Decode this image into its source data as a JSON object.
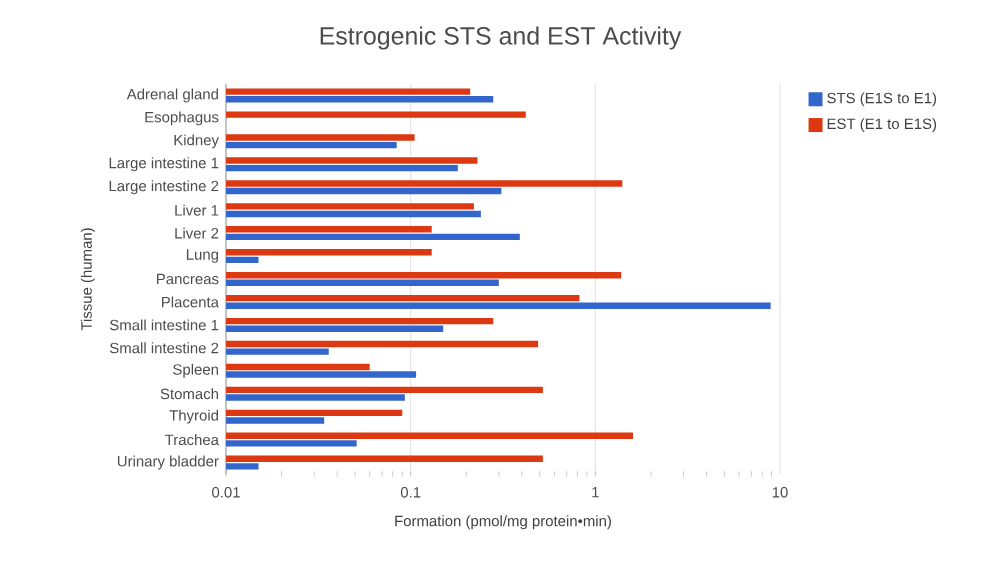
{
  "chart_data": {
    "type": "bar",
    "orientation": "horizontal",
    "title": "Estrogenic STS and EST Activity",
    "xlabel": "Formation (pmol/mg protein•min)",
    "ylabel": "Tissue (human)",
    "categories": [
      "Adrenal gland",
      "Esophagus",
      "Kidney",
      "Large intestine 1",
      "Large intestine 2",
      "Liver 1",
      "Liver 2",
      "Lung",
      "Pancreas",
      "Placenta",
      "Small intestine 1",
      "Small intestine 2",
      "Spleen",
      "Stomach",
      "Thyroid",
      "Trachea",
      "Urinary bladder"
    ],
    "series": [
      {
        "name": "STS (E1S to E1)",
        "color": "#3366cc",
        "values": [
          0.28,
          null,
          0.084,
          0.18,
          0.31,
          0.24,
          0.39,
          0.015,
          0.3,
          8.9,
          0.15,
          0.036,
          0.107,
          0.093,
          0.034,
          0.051,
          0.015
        ]
      },
      {
        "name": "EST (E1 to E1S)",
        "color": "#dc3912",
        "values": [
          0.21,
          0.42,
          0.105,
          0.23,
          1.4,
          0.22,
          0.13,
          0.13,
          1.38,
          0.82,
          0.28,
          0.49,
          0.06,
          0.52,
          0.09,
          1.6,
          0.52
        ]
      }
    ],
    "log": "x",
    "xlim": [
      0.01,
      10
    ],
    "xticks": [
      0.01,
      0.1,
      1,
      10
    ],
    "grid": "x",
    "legend": "top right"
  }
}
